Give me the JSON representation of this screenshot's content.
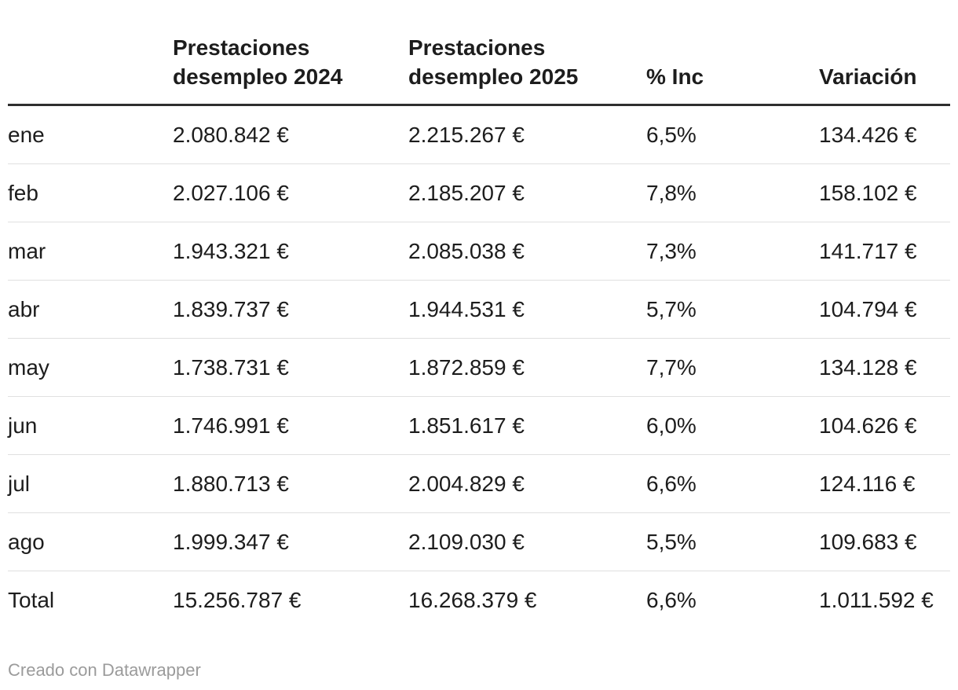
{
  "chart_data": {
    "type": "table",
    "columns": [
      "",
      "Prestaciones desempleo 2024",
      "Prestaciones desempleo 2025",
      "% Inc",
      "Variación"
    ],
    "rows": [
      {
        "label": "ene",
        "p2024": "2.080.842 €",
        "p2025": "2.215.267 €",
        "inc": "6,5%",
        "variacion": "134.426 €"
      },
      {
        "label": "feb",
        "p2024": "2.027.106 €",
        "p2025": "2.185.207 €",
        "inc": "7,8%",
        "variacion": "158.102 €"
      },
      {
        "label": "mar",
        "p2024": "1.943.321 €",
        "p2025": "2.085.038 €",
        "inc": "7,3%",
        "variacion": "141.717 €"
      },
      {
        "label": "abr",
        "p2024": "1.839.737 €",
        "p2025": "1.944.531 €",
        "inc": "5,7%",
        "variacion": "104.794 €"
      },
      {
        "label": "may",
        "p2024": "1.738.731 €",
        "p2025": "1.872.859 €",
        "inc": "7,7%",
        "variacion": "134.128 €"
      },
      {
        "label": "jun",
        "p2024": "1.746.991 €",
        "p2025": "1.851.617 €",
        "inc": "6,0%",
        "variacion": "104.626 €"
      },
      {
        "label": "jul",
        "p2024": "1.880.713 €",
        "p2025": "2.004.829 €",
        "inc": "6,6%",
        "variacion": "124.116 €"
      },
      {
        "label": "ago",
        "p2024": "1.999.347 €",
        "p2025": "2.109.030 €",
        "inc": "5,5%",
        "variacion": "109.683 €"
      },
      {
        "label": "Total",
        "p2024": "15.256.787 €",
        "p2025": "16.268.379 €",
        "inc": "6,6%",
        "variacion": "1.011.592 €"
      }
    ]
  },
  "footer": {
    "credit": "Creado con Datawrapper"
  },
  "colors": {
    "text": "#1d1d1d",
    "header_rule": "#2e2e2e",
    "row_divider": "#e0e0e0",
    "credit_text": "#9b9b9b",
    "background": "#ffffff"
  }
}
